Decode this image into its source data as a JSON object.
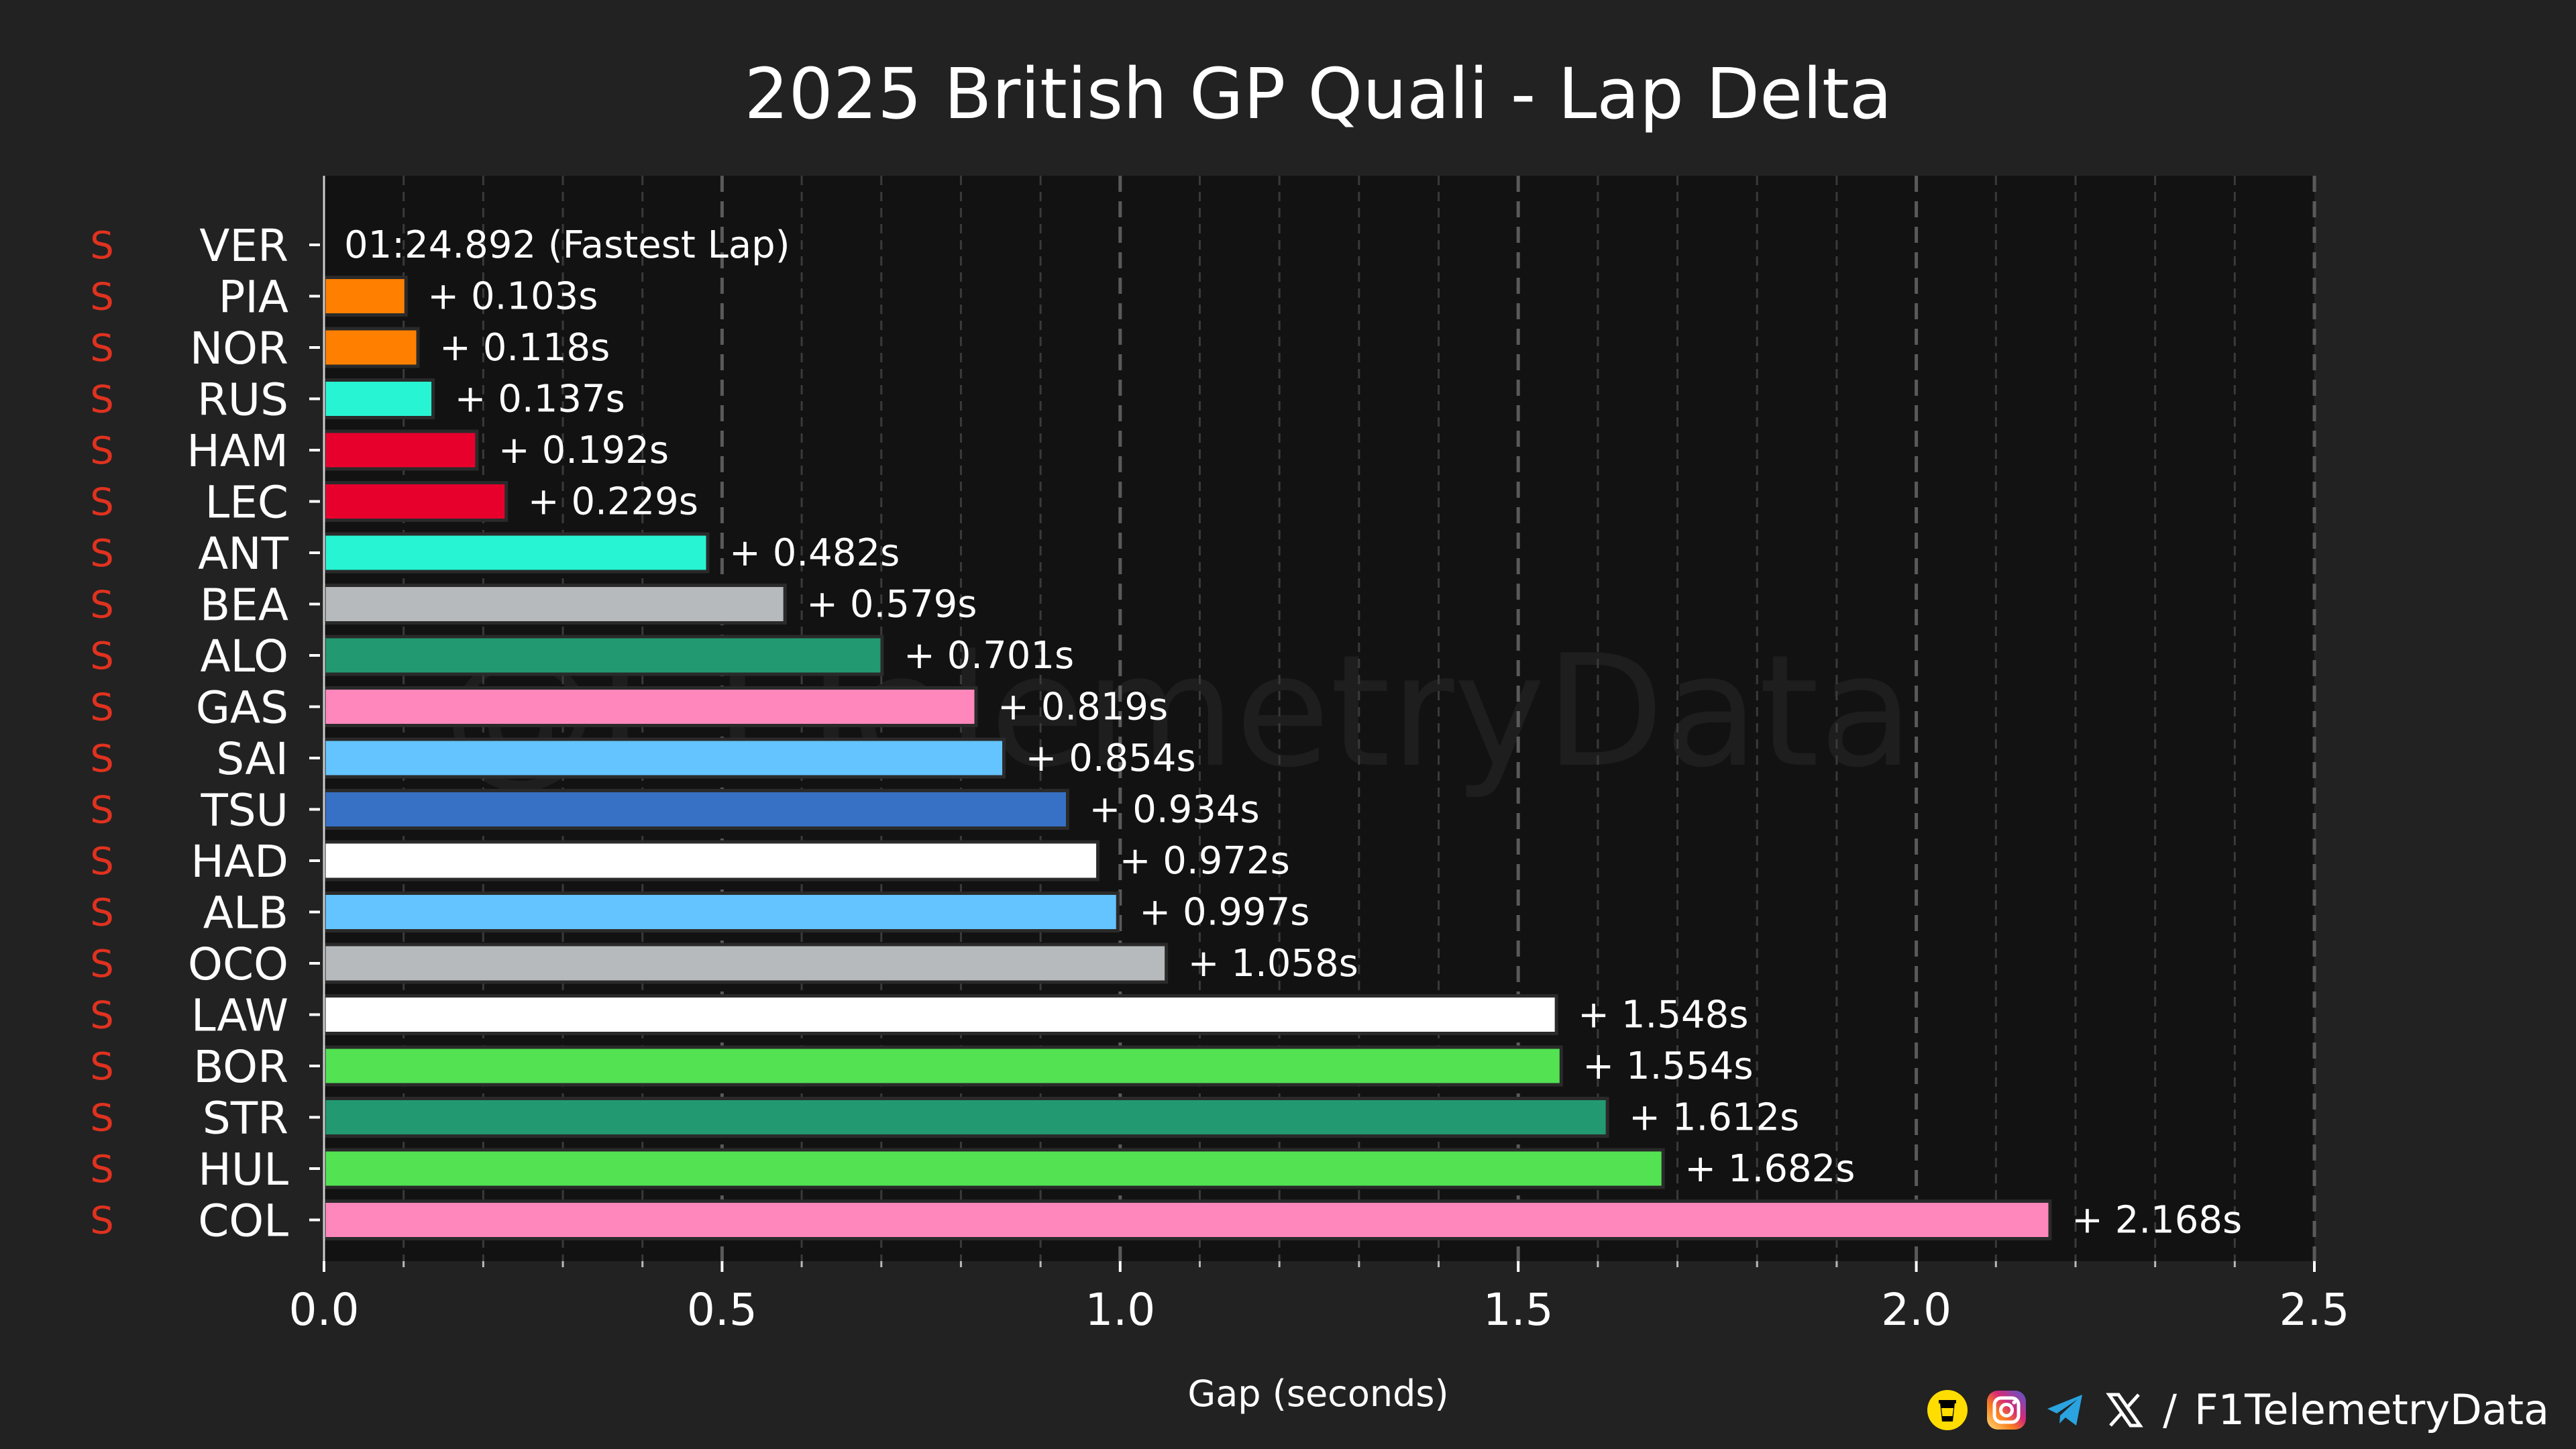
{
  "chart_data": {
    "type": "bar",
    "orientation": "horizontal",
    "title": "2025 British GP Quali - Lap Delta",
    "xlabel": "Gap (seconds)",
    "ylabel": "",
    "xlim": [
      0,
      2.5
    ],
    "xticks": [
      "0.0",
      "0.5",
      "1.0",
      "1.5",
      "2.0",
      "2.5"
    ],
    "grid": true,
    "fastest_lap_text": "01:24.892 (Fastest Lap)",
    "watermark": "@F1TelemetryData",
    "drivers": [
      {
        "driver": "VER",
        "tyre": "S",
        "gap": 0,
        "label": "",
        "color": "#3671c6"
      },
      {
        "driver": "PIA",
        "tyre": "S",
        "gap": 0.103,
        "label": "+ 0.103s",
        "color": "#ff8000"
      },
      {
        "driver": "NOR",
        "tyre": "S",
        "gap": 0.118,
        "label": "+ 0.118s",
        "color": "#ff8000"
      },
      {
        "driver": "RUS",
        "tyre": "S",
        "gap": 0.137,
        "label": "+ 0.137s",
        "color": "#27f4d2"
      },
      {
        "driver": "HAM",
        "tyre": "S",
        "gap": 0.192,
        "label": "+ 0.192s",
        "color": "#e8002d"
      },
      {
        "driver": "LEC",
        "tyre": "S",
        "gap": 0.229,
        "label": "+ 0.229s",
        "color": "#e8002d"
      },
      {
        "driver": "ANT",
        "tyre": "S",
        "gap": 0.482,
        "label": "+ 0.482s",
        "color": "#27f4d2"
      },
      {
        "driver": "BEA",
        "tyre": "S",
        "gap": 0.579,
        "label": "+ 0.579s",
        "color": "#b6babd"
      },
      {
        "driver": "ALO",
        "tyre": "S",
        "gap": 0.701,
        "label": "+ 0.701s",
        "color": "#229971"
      },
      {
        "driver": "GAS",
        "tyre": "S",
        "gap": 0.819,
        "label": "+ 0.819s",
        "color": "#ff87bc"
      },
      {
        "driver": "SAI",
        "tyre": "S",
        "gap": 0.854,
        "label": "+ 0.854s",
        "color": "#64c4ff"
      },
      {
        "driver": "TSU",
        "tyre": "S",
        "gap": 0.934,
        "label": "+ 0.934s",
        "color": "#3671c6"
      },
      {
        "driver": "HAD",
        "tyre": "S",
        "gap": 0.972,
        "label": "+ 0.972s",
        "color": "#ffffff"
      },
      {
        "driver": "ALB",
        "tyre": "S",
        "gap": 0.997,
        "label": "+ 0.997s",
        "color": "#64c4ff"
      },
      {
        "driver": "OCO",
        "tyre": "S",
        "gap": 1.058,
        "label": "+ 1.058s",
        "color": "#b6babd"
      },
      {
        "driver": "LAW",
        "tyre": "S",
        "gap": 1.548,
        "label": "+ 1.548s",
        "color": "#ffffff"
      },
      {
        "driver": "BOR",
        "tyre": "S",
        "gap": 1.554,
        "label": "+ 1.554s",
        "color": "#52e252"
      },
      {
        "driver": "STR",
        "tyre": "S",
        "gap": 1.612,
        "label": "+ 1.612s",
        "color": "#229971"
      },
      {
        "driver": "HUL",
        "tyre": "S",
        "gap": 1.682,
        "label": "+ 1.682s",
        "color": "#52e252"
      },
      {
        "driver": "COL",
        "tyre": "S",
        "gap": 2.168,
        "label": "+ 2.168s",
        "color": "#ff87bc"
      }
    ]
  },
  "footer": {
    "icons": [
      "buymeacoffee-icon",
      "instagram-icon",
      "telegram-icon",
      "x-icon"
    ],
    "separator": "/",
    "handle": "F1TelemetryData"
  },
  "colors": {
    "background": "#222222",
    "plot_background": "#121212",
    "tyre_soft": "#e0321f",
    "grid_major": "#5a5a5a",
    "grid_minor": "#3a3a3a"
  }
}
